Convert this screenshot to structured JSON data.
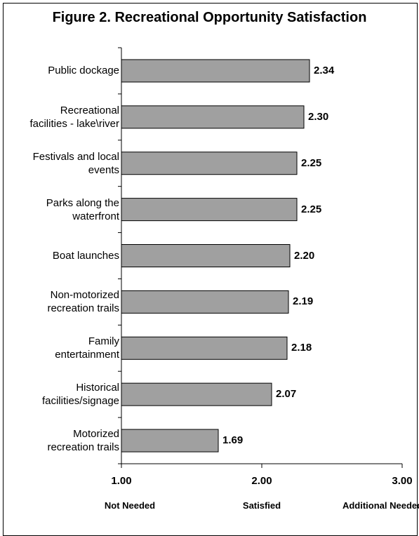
{
  "chart_data": {
    "type": "bar",
    "orientation": "horizontal",
    "title": "Figure 2. Recreational Opportunity Satisfaction",
    "categories": [
      "Public dockage",
      "Recreational facilities - lake\\river",
      "Festivals and local events",
      "Parks along the waterfront",
      "Boat launches",
      "Non-motorized recreation trails",
      "Family entertainment",
      "Historical facilities/signage",
      "Motorized recreation trails"
    ],
    "category_lines": [
      [
        "Public dockage"
      ],
      [
        "Recreational",
        "facilities - lake\\river"
      ],
      [
        "Festivals and local",
        "events"
      ],
      [
        "Parks along the",
        "waterfront"
      ],
      [
        "Boat launches"
      ],
      [
        "Non-motorized",
        "recreation trails"
      ],
      [
        "Family",
        "entertainment"
      ],
      [
        "Historical",
        "facilities/signage"
      ],
      [
        "Motorized",
        "recreation trails"
      ]
    ],
    "values": [
      2.34,
      2.3,
      2.25,
      2.25,
      2.2,
      2.19,
      2.18,
      2.07,
      1.69
    ],
    "value_labels": [
      "2.34",
      "2.30",
      "2.25",
      "2.25",
      "2.20",
      "2.19",
      "2.18",
      "2.07",
      "1.69"
    ],
    "xlim": [
      1.0,
      3.0
    ],
    "x_ticks": [
      1.0,
      2.0,
      3.0
    ],
    "x_tick_labels": [
      "1.00",
      "2.00",
      "3.00"
    ],
    "x_scale_captions": [
      "Not Needed",
      "Satisfied",
      "Additional Needed"
    ],
    "xlabel": "",
    "ylabel": "",
    "grid": false,
    "legend": "none",
    "bar_color": "#a0a0a0",
    "bar_edge_color": "#000000"
  }
}
